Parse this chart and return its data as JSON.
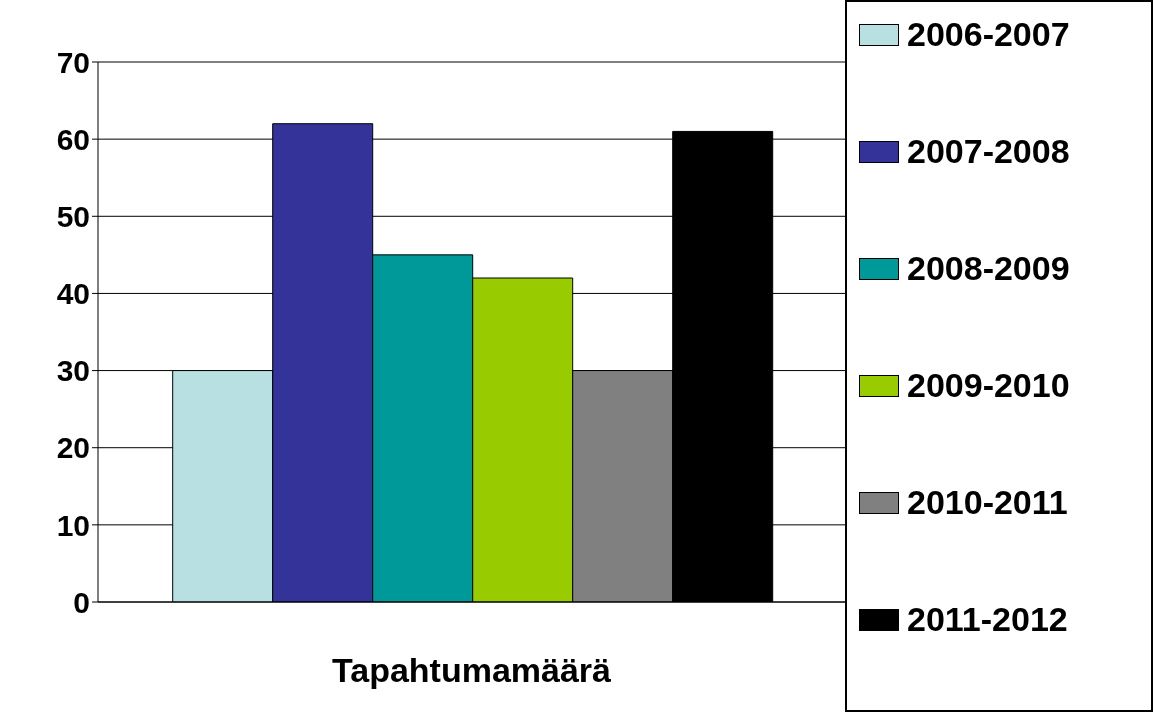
{
  "chart_data": {
    "type": "bar",
    "categories": [
      "Tapahtumamäärä"
    ],
    "series": [
      {
        "name": "2006-2007",
        "color": "#b8e0e3",
        "values": [
          30
        ]
      },
      {
        "name": "2007-2008",
        "color": "#333399",
        "values": [
          62
        ]
      },
      {
        "name": "2008-2009",
        "color": "#009999",
        "values": [
          45
        ]
      },
      {
        "name": "2009-2010",
        "color": "#99cc00",
        "values": [
          42
        ]
      },
      {
        "name": "2010-2011",
        "color": "#808080",
        "values": [
          30
        ]
      },
      {
        "name": "2011-2012",
        "color": "#000000",
        "values": [
          61
        ]
      }
    ],
    "ylim": [
      0,
      70
    ],
    "yticks": [
      0,
      10,
      20,
      30,
      40,
      50,
      60,
      70
    ],
    "grid": "y",
    "legend": "right"
  }
}
